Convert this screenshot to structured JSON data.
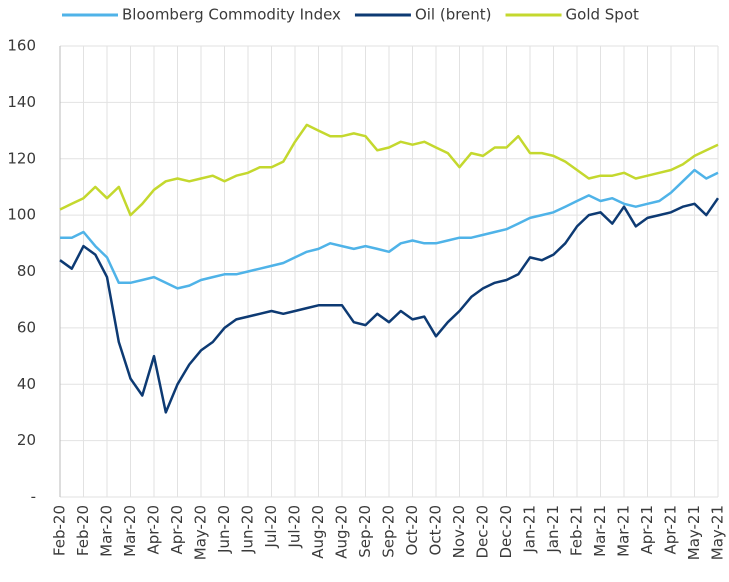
{
  "chart_data": {
    "type": "line",
    "categories": [
      "Feb-20",
      null,
      "Feb-20",
      null,
      "Mar-20",
      null,
      "Mar-20",
      null,
      "Apr-20",
      null,
      "Apr-20",
      null,
      "May-20",
      null,
      "Jun-20",
      null,
      "Jun-20",
      null,
      "Jul-20",
      null,
      "Jul-20",
      null,
      "Aug-20",
      null,
      "Aug-20",
      null,
      "Sep-20",
      null,
      "Sep-20",
      null,
      "Oct-20",
      null,
      "Oct-20",
      null,
      "Nov-20",
      null,
      "Dec-20",
      null,
      "Dec-20",
      null,
      "Jan-21",
      null,
      "Jan-21",
      null,
      "Feb-21",
      null,
      "Mar-21",
      null,
      "Mar-21",
      null,
      "Apr-21",
      null,
      "Apr-21",
      null,
      "May-21",
      null,
      "May-21"
    ],
    "series": [
      {
        "name": "Bloomberg Commodity Index",
        "color": "#4fb3e8",
        "values": [
          92,
          92,
          94,
          89,
          85,
          76,
          76,
          77,
          78,
          76,
          74,
          75,
          77,
          78,
          79,
          79,
          80,
          81,
          82,
          83,
          85,
          87,
          88,
          90,
          89,
          88,
          89,
          88,
          87,
          90,
          91,
          90,
          90,
          91,
          92,
          92,
          93,
          94,
          95,
          97,
          99,
          100,
          101,
          103,
          105,
          107,
          105,
          106,
          104,
          103,
          104,
          105,
          108,
          112,
          116,
          113,
          115
        ]
      },
      {
        "name": "Oil (brent)",
        "color": "#0d3a73",
        "values": [
          84,
          81,
          89,
          86,
          78,
          55,
          42,
          36,
          50,
          30,
          40,
          47,
          52,
          55,
          60,
          63,
          64,
          65,
          66,
          65,
          66,
          67,
          68,
          68,
          68,
          62,
          61,
          65,
          62,
          66,
          63,
          64,
          57,
          62,
          66,
          71,
          74,
          76,
          77,
          79,
          85,
          84,
          86,
          90,
          96,
          100,
          101,
          97,
          103,
          96,
          99,
          100,
          101,
          103,
          104,
          100,
          106
        ]
      },
      {
        "name": "Gold Spot",
        "color": "#c4d82e",
        "values": [
          102,
          104,
          106,
          110,
          106,
          110,
          100,
          104,
          109,
          112,
          113,
          112,
          113,
          114,
          112,
          114,
          115,
          117,
          117,
          119,
          126,
          132,
          130,
          128,
          128,
          129,
          128,
          123,
          124,
          126,
          125,
          126,
          124,
          122,
          117,
          122,
          121,
          124,
          124,
          128,
          122,
          122,
          121,
          119,
          116,
          113,
          114,
          114,
          115,
          113,
          114,
          115,
          116,
          118,
          121,
          123,
          125
        ]
      }
    ],
    "ylim": [
      0,
      160
    ],
    "yticks": [
      {
        "value": 0,
        "label": "-"
      },
      20,
      40,
      60,
      80,
      100,
      120,
      140,
      160
    ],
    "grid": true,
    "legend": "top"
  }
}
